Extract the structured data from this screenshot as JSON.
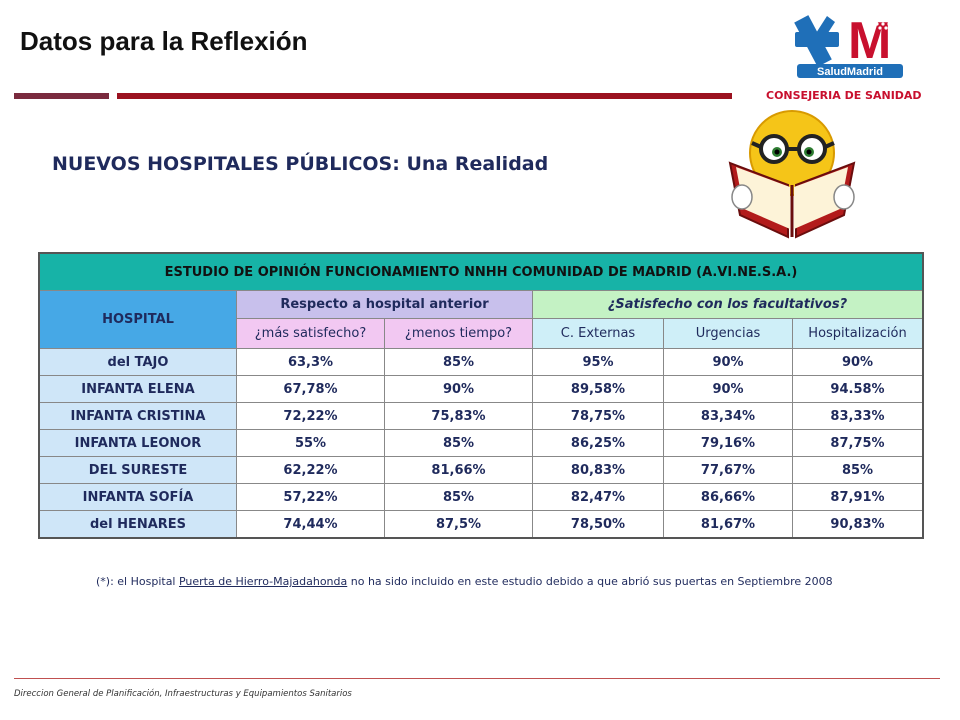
{
  "slide_title": "Datos para la Reflexión",
  "logo": {
    "letter": "M",
    "brand": "SaludMadrid",
    "icon": "red-cross-star-logo"
  },
  "department": "CONSEJERIA DE SANIDAD",
  "subtitle": "NUEVOS HOSPITALES PÚBLICOS: Una Realidad",
  "illustration": "smiley-reading-book",
  "colors": {
    "banner": "#17b3a7",
    "hospital_header": "#46a8e6",
    "respecto_header": "#c8c0ec",
    "satisfecho_header": "#c4f2c4",
    "rule_red": "#9b1220",
    "department_red": "#c8102e",
    "text_navy": "#1f2a5c"
  },
  "table": {
    "banner": "ESTUDIO DE OPINIÓN FUNCIONAMIENTO NNHH COMUNIDAD DE MADRID (A.VI.NE.S.A.)",
    "hospital_header": "HOSPITAL",
    "group_respecto": "Respecto a hospital anterior",
    "group_satisfecho": "¿Satisfecho con los facultativos?",
    "sub_headers": [
      "¿más satisfecho?",
      "¿menos tiempo?",
      "C. Externas",
      "Urgencias",
      "Hospitalización"
    ],
    "rows": [
      {
        "name": "del TAJO",
        "values": [
          "63,3%",
          "85%",
          "95%",
          "90%",
          "90%"
        ]
      },
      {
        "name": "INFANTA ELENA",
        "values": [
          "67,78%",
          "90%",
          "89,58%",
          "90%",
          "94.58%"
        ]
      },
      {
        "name": "INFANTA CRISTINA",
        "values": [
          "72,22%",
          "75,83%",
          "78,75%",
          "83,34%",
          "83,33%"
        ]
      },
      {
        "name": "INFANTA LEONOR",
        "values": [
          "55%",
          "85%",
          "86,25%",
          "79,16%",
          "87,75%"
        ]
      },
      {
        "name": "DEL SURESTE",
        "values": [
          "62,22%",
          "81,66%",
          "80,83%",
          "77,67%",
          "85%"
        ]
      },
      {
        "name": "INFANTA SOFÍA",
        "values": [
          "57,22%",
          "85%",
          "82,47%",
          "86,66%",
          "87,91%"
        ]
      },
      {
        "name": "del HENARES",
        "values": [
          "74,44%",
          "87,5%",
          "78,50%",
          "81,67%",
          "90,83%"
        ]
      }
    ]
  },
  "footnote": {
    "prefix": "(*): el Hospital ",
    "link": "Puerta de Hierro-Majadahonda",
    "suffix": " no ha sido incluido en este estudio debido a que abrió sus puertas en Septiembre 2008"
  },
  "footer": "Direccion General de Planificación, Infraestructuras y Equipamientos Sanitarios"
}
